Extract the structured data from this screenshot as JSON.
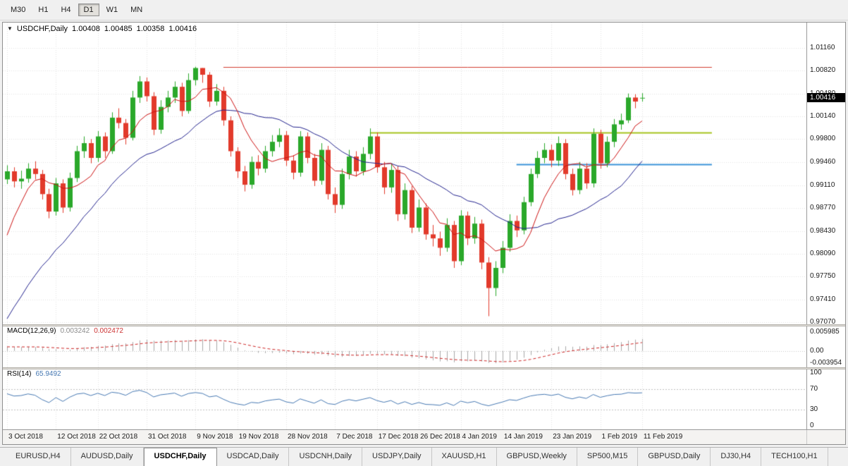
{
  "toolbar": {
    "timeframes": [
      {
        "label": "M30",
        "active": false
      },
      {
        "label": "H1",
        "active": false
      },
      {
        "label": "H4",
        "active": false
      },
      {
        "label": "D1",
        "active": true
      },
      {
        "label": "W1",
        "active": false
      },
      {
        "label": "MN",
        "active": false
      }
    ]
  },
  "window": {
    "title": {
      "symbol": "USDCHF,Daily",
      "open": "1.00408",
      "high": "1.00485",
      "low": "1.00358",
      "close": "1.00416"
    }
  },
  "chart_data": {
    "type": "candlestick",
    "symbol": "USDCHF",
    "period": "Daily",
    "up_color": "#2aa82a",
    "down_color": "#e23a2b",
    "grid_color": "#e2e2e2",
    "price_axis": {
      "ticks": [
        "1.01160",
        "1.00820",
        "1.00480",
        "1.00140",
        "0.99800",
        "0.99460",
        "0.99110",
        "0.98770",
        "0.98430",
        "0.98090",
        "0.97750",
        "0.97410",
        "0.97070"
      ],
      "range": [
        0.97039,
        1.01538
      ],
      "current": "1.00416",
      "current_value": 1.00416
    },
    "time_axis": {
      "labels": [
        {
          "text": "3 Oct 2018",
          "index": 0
        },
        {
          "text": "12 Oct 2018",
          "index": 7
        },
        {
          "text": "22 Oct 2018",
          "index": 13
        },
        {
          "text": "31 Oct 2018",
          "index": 20
        },
        {
          "text": "9 Nov 2018",
          "index": 27
        },
        {
          "text": "19 Nov 2018",
          "index": 33
        },
        {
          "text": "28 Nov 2018",
          "index": 40
        },
        {
          "text": "7 Dec 2018",
          "index": 47
        },
        {
          "text": "17 Dec 2018",
          "index": 53
        },
        {
          "text": "26 Dec 2018",
          "index": 59
        },
        {
          "text": "4 Jan 2019",
          "index": 65
        },
        {
          "text": "14 Jan 2019",
          "index": 71
        },
        {
          "text": "23 Jan 2019",
          "index": 78
        },
        {
          "text": "1 Feb 2019",
          "index": 85
        },
        {
          "text": "11 Feb 2019",
          "index": 91
        }
      ],
      "indices": [
        0,
        7,
        13,
        20,
        27,
        33,
        40,
        47,
        53,
        59,
        65,
        71,
        78,
        85,
        91
      ]
    },
    "candles_ohlc": [
      [
        0.992,
        0.9941,
        0.9913,
        0.9932
      ],
      [
        0.9932,
        0.9938,
        0.9908,
        0.9917
      ],
      [
        0.9917,
        0.9933,
        0.9906,
        0.9921
      ],
      [
        0.9921,
        0.9944,
        0.9915,
        0.9936
      ],
      [
        0.9936,
        0.9947,
        0.992,
        0.9928
      ],
      [
        0.9928,
        0.9934,
        0.989,
        0.9898
      ],
      [
        0.9898,
        0.9906,
        0.9862,
        0.9872
      ],
      [
        0.9872,
        0.9922,
        0.9866,
        0.9914
      ],
      [
        0.9914,
        0.992,
        0.987,
        0.9878
      ],
      [
        0.9878,
        0.993,
        0.9872,
        0.9922
      ],
      [
        0.9922,
        0.997,
        0.9916,
        0.9962
      ],
      [
        0.9962,
        0.9984,
        0.9952,
        0.9974
      ],
      [
        0.9974,
        0.998,
        0.9944,
        0.9952
      ],
      [
        0.9952,
        0.9992,
        0.9946,
        0.9984
      ],
      [
        0.9984,
        0.999,
        0.9952,
        0.9962
      ],
      [
        0.9962,
        1.002,
        0.9958,
        1.0012
      ],
      [
        1.0012,
        1.0026,
        0.9996,
        1.0004
      ],
      [
        1.0004,
        1.001,
        0.9972,
        0.9982
      ],
      [
        0.9982,
        1.0052,
        0.9978,
        1.0042
      ],
      [
        1.0042,
        1.0074,
        1.0034,
        1.0066
      ],
      [
        1.0066,
        1.0072,
        1.0036,
        1.0044
      ],
      [
        1.0044,
        1.005,
        0.9986,
        0.9994
      ],
      [
        0.9994,
        1.0038,
        0.9988,
        1.0028
      ],
      [
        1.0028,
        1.0052,
        1.002,
        1.0042
      ],
      [
        1.0042,
        1.0066,
        1.0034,
        1.0058
      ],
      [
        1.0058,
        1.0064,
        1.0014,
        1.0022
      ],
      [
        1.0022,
        1.0078,
        1.0018,
        1.0068
      ],
      [
        1.0068,
        1.0088,
        1.006,
        1.0086
      ],
      [
        1.0086,
        1.0086,
        1.0064,
        1.0076
      ],
      [
        1.0076,
        1.008,
        1.0028,
        1.0036
      ],
      [
        1.0036,
        1.0062,
        1.003,
        1.0052
      ],
      [
        1.0052,
        1.0058,
        1.0,
        1.0008
      ],
      [
        1.0008,
        1.0014,
        0.9954,
        0.9962
      ],
      [
        0.9962,
        0.9968,
        0.9922,
        0.9932
      ],
      [
        0.9932,
        0.994,
        0.9902,
        0.9912
      ],
      [
        0.9912,
        0.9954,
        0.9906,
        0.9946
      ],
      [
        0.9946,
        0.9956,
        0.9926,
        0.9936
      ],
      [
        0.9936,
        0.997,
        0.993,
        0.9962
      ],
      [
        0.9962,
        0.9986,
        0.9954,
        0.9976
      ],
      [
        0.9976,
        0.9996,
        0.9968,
        0.9986
      ],
      [
        0.9986,
        0.9992,
        0.994,
        0.9948
      ],
      [
        0.9948,
        0.9956,
        0.992,
        0.993
      ],
      [
        0.993,
        0.9992,
        0.9924,
        0.9984
      ],
      [
        0.9984,
        0.999,
        0.9944,
        0.9952
      ],
      [
        0.9952,
        0.9958,
        0.991,
        0.9918
      ],
      [
        0.9918,
        0.9974,
        0.9912,
        0.9964
      ],
      [
        0.9964,
        0.997,
        0.989,
        0.9898
      ],
      [
        0.9898,
        0.9908,
        0.987,
        0.9882
      ],
      [
        0.9882,
        0.9936,
        0.9876,
        0.9928
      ],
      [
        0.9928,
        0.9964,
        0.992,
        0.9954
      ],
      [
        0.9954,
        0.9962,
        0.9924,
        0.9932
      ],
      [
        0.9932,
        0.9968,
        0.9926,
        0.9958
      ],
      [
        0.9958,
        0.9996,
        0.995,
        0.9984
      ],
      [
        0.9984,
        0.999,
        0.993,
        0.9938
      ],
      [
        0.9938,
        0.9946,
        0.9898,
        0.9908
      ],
      [
        0.9908,
        0.9944,
        0.99,
        0.9934
      ],
      [
        0.9934,
        0.994,
        0.9858,
        0.9868
      ],
      [
        0.9868,
        0.9914,
        0.986,
        0.9904
      ],
      [
        0.9904,
        0.991,
        0.984,
        0.9848
      ],
      [
        0.9848,
        0.989,
        0.9842,
        0.9878
      ],
      [
        0.9878,
        0.9884,
        0.983,
        0.9838
      ],
      [
        0.9838,
        0.9852,
        0.982,
        0.9832
      ],
      [
        0.9832,
        0.9842,
        0.9806,
        0.9818
      ],
      [
        0.9818,
        0.9862,
        0.9812,
        0.9852
      ],
      [
        0.9852,
        0.9858,
        0.9788,
        0.9798
      ],
      [
        0.9798,
        0.9874,
        0.9792,
        0.9866
      ],
      [
        0.9866,
        0.9872,
        0.9822,
        0.9832
      ],
      [
        0.9832,
        0.9864,
        0.9824,
        0.9854
      ],
      [
        0.9854,
        0.986,
        0.9786,
        0.9796
      ],
      [
        0.9796,
        0.9804,
        0.9716,
        0.9758
      ],
      [
        0.9758,
        0.9798,
        0.9746,
        0.9788
      ],
      [
        0.9788,
        0.9828,
        0.978,
        0.9818
      ],
      [
        0.9818,
        0.9868,
        0.9812,
        0.9858
      ],
      [
        0.9858,
        0.9866,
        0.9834,
        0.9844
      ],
      [
        0.9844,
        0.9894,
        0.9838,
        0.9886
      ],
      [
        0.9886,
        0.9936,
        0.988,
        0.9928
      ],
      [
        0.9928,
        0.9962,
        0.9922,
        0.9952
      ],
      [
        0.9952,
        0.9974,
        0.9944,
        0.9964
      ],
      [
        0.9964,
        0.9972,
        0.9938,
        0.9948
      ],
      [
        0.9948,
        0.9984,
        0.994,
        0.9974
      ],
      [
        0.9974,
        0.998,
        0.992,
        0.9928
      ],
      [
        0.9928,
        0.9936,
        0.9896,
        0.9904
      ],
      [
        0.9904,
        0.9946,
        0.9898,
        0.9936
      ],
      [
        0.9936,
        0.9944,
        0.9906,
        0.9914
      ],
      [
        0.9914,
        0.9996,
        0.9908,
        0.9988
      ],
      [
        0.9988,
        0.9994,
        0.9936,
        0.9944
      ],
      [
        0.9944,
        0.9984,
        0.9938,
        0.9976
      ],
      [
        0.9976,
        1.001,
        0.9968,
        1.0002
      ],
      [
        1.0002,
        1.0018,
        0.9994,
        1.0008
      ],
      [
        1.0008,
        1.0048,
        1.0004,
        1.0042
      ],
      [
        1.0042,
        1.0047,
        1.0026,
        1.0036
      ],
      [
        1.00408,
        1.00485,
        1.00358,
        1.00416
      ]
    ],
    "ma_seed_closes": [
      0.948,
      0.952,
      0.9505,
      0.9545,
      0.953,
      0.957,
      0.9555,
      0.9595,
      0.958,
      0.962,
      0.9605,
      0.9645,
      0.963,
      0.967,
      0.9655,
      0.9695,
      0.968,
      0.972,
      0.9705,
      0.9745,
      0.973,
      0.977,
      0.979,
      0.984,
      0.988,
      0.9915
    ],
    "osc_seed_closes": [
      0.985,
      0.987,
      0.9858,
      0.988,
      0.9866,
      0.9888,
      0.9874,
      0.9896,
      0.9882,
      0.9904,
      0.989,
      0.9908,
      0.9894,
      0.9912,
      0.9898,
      0.9914,
      0.99,
      0.9916,
      0.9902,
      0.9918,
      0.9904,
      0.992,
      0.9906,
      0.9922,
      0.991,
      0.9924
    ],
    "overlays": {
      "ma_fast": {
        "period": 7,
        "color": "#cc1111"
      },
      "ma_slow": {
        "period": 21,
        "color": "#20208c"
      },
      "hlines": [
        {
          "price": 1.0088,
          "color": "#d23b2f",
          "width": 1,
          "from_index": 31,
          "to_index": 101
        },
        {
          "price": 0.999,
          "color": "#a6c41e",
          "width": 2,
          "from_index": 52,
          "to_index": 101
        },
        {
          "price": 0.9943,
          "color": "#3b93d8",
          "width": 2,
          "from_index": 73,
          "to_index": 101
        }
      ]
    },
    "indicators": {
      "macd": {
        "label": "MACD(12,26,9)",
        "value": "0.003242",
        "signal_value": "0.002472",
        "fast": 12,
        "slow": 26,
        "signal": 9,
        "scale_ticks": [
          {
            "text": "0.005985",
            "value": 0.005985
          },
          {
            "text": "0.00",
            "value": 0
          },
          {
            "text": "-0.003954",
            "value": -0.003954
          }
        ],
        "range": [
          -0.0052,
          0.0078
        ],
        "hist_color": "#a9a9a9",
        "signal_color": "#cc2222",
        "zero_color": "#c8c8c8"
      },
      "rsi": {
        "label": "RSI(14)",
        "value": "65.9492",
        "period": 14,
        "scale_ticks": [
          {
            "text": "100",
            "value": 100
          },
          {
            "text": "70",
            "value": 70
          },
          {
            "text": "30",
            "value": 30
          },
          {
            "text": "0",
            "value": 0
          }
        ],
        "levels": [
          70,
          30
        ],
        "range": [
          -7,
          107
        ],
        "color": "#4678b2",
        "level_color": "#c0c0c0"
      }
    }
  },
  "tabs": [
    {
      "label": "EURUSD,H4",
      "active": false
    },
    {
      "label": "AUDUSD,Daily",
      "active": false
    },
    {
      "label": "USDCHF,Daily",
      "active": true
    },
    {
      "label": "USDCAD,Daily",
      "active": false
    },
    {
      "label": "USDCNH,Daily",
      "active": false
    },
    {
      "label": "USDJPY,Daily",
      "active": false
    },
    {
      "label": "XAUUSD,H1",
      "active": false
    },
    {
      "label": "GBPUSD,Weekly",
      "active": false
    },
    {
      "label": "SP500,M15",
      "active": false
    },
    {
      "label": "GBPUSD,Daily",
      "active": false
    },
    {
      "label": "DJ30,H4",
      "active": false
    },
    {
      "label": "TECH100,H1",
      "active": false
    }
  ]
}
